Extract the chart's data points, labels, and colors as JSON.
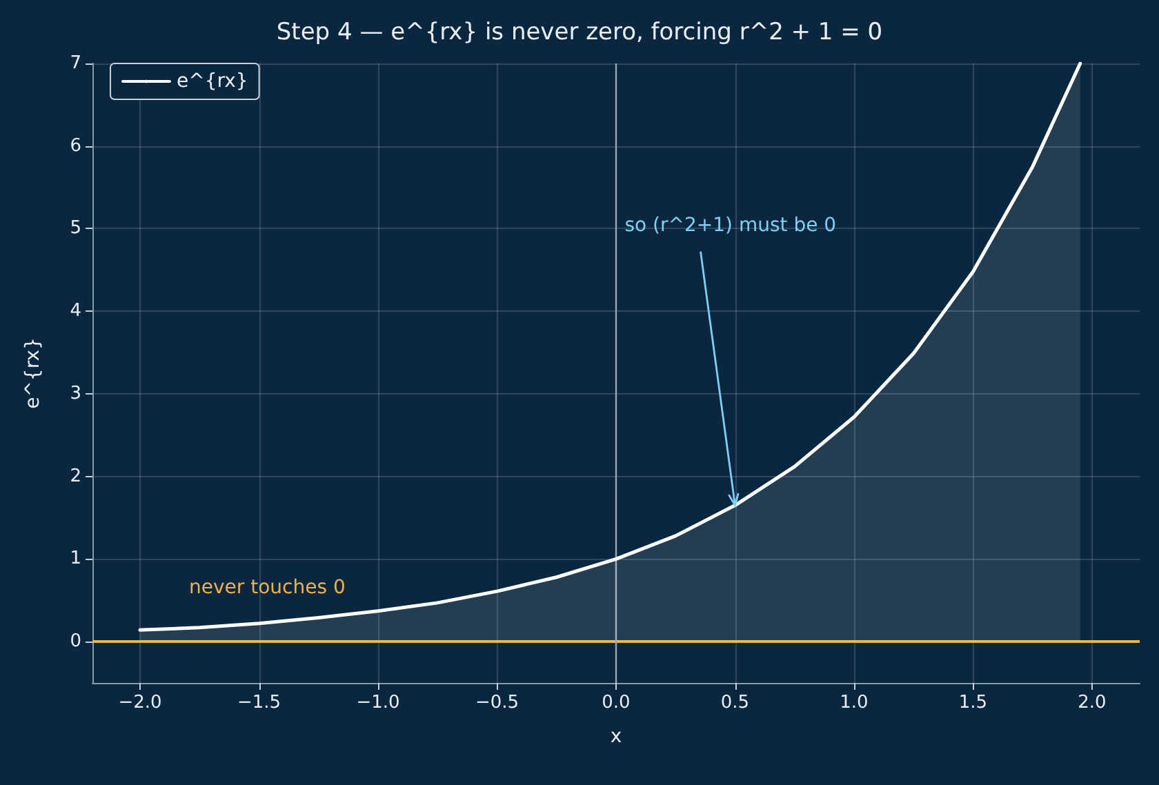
{
  "chart_data": {
    "type": "area",
    "title": "Step 4 — e^{rx} is never zero, forcing r^2 + 1 = 0",
    "xlabel": "x",
    "ylabel": "e^{rx}",
    "x": [
      -2,
      -1.75,
      -1.5,
      -1.25,
      -1,
      -0.75,
      -0.5,
      -0.25,
      0,
      0.25,
      0.5,
      0.75,
      1,
      1.25,
      1.5,
      1.75,
      1.95
    ],
    "series": [
      {
        "name": "e^{rx}",
        "color": "#ffffff",
        "values": [
          0.14,
          0.17,
          0.22,
          0.29,
          0.37,
          0.47,
          0.61,
          0.78,
          1,
          1.28,
          1.65,
          2.12,
          2.72,
          3.49,
          4.48,
          5.75,
          7.0
        ]
      }
    ],
    "xlim": [
      -2.2,
      2.2
    ],
    "ylim": [
      -0.5,
      7
    ],
    "xticks": [
      {
        "value": -2,
        "label": "−2.0"
      },
      {
        "value": -1.5,
        "label": "−1.5"
      },
      {
        "value": -1,
        "label": "−1.0"
      },
      {
        "value": -0.5,
        "label": "−0.5"
      },
      {
        "value": 0,
        "label": "0.0"
      },
      {
        "value": 0.5,
        "label": "0.5"
      },
      {
        "value": 1,
        "label": "1.0"
      },
      {
        "value": 1.5,
        "label": "1.5"
      },
      {
        "value": 2,
        "label": "2.0"
      }
    ],
    "yticks": [
      0,
      1,
      2,
      3,
      4,
      5,
      6,
      7
    ],
    "ref_lines": [
      {
        "axis": "y",
        "value": 0,
        "color": "#f0b04c"
      },
      {
        "axis": "x",
        "value": 0,
        "color": "#9aa8b6"
      }
    ],
    "annotations": [
      "never touches 0",
      {
        "text": "so (r^2+1) must be 0",
        "x": 0.5,
        "y": 1.65
      }
    ],
    "grid": true,
    "legend": "top left",
    "marker": "none",
    "line_style": "solid"
  }
}
